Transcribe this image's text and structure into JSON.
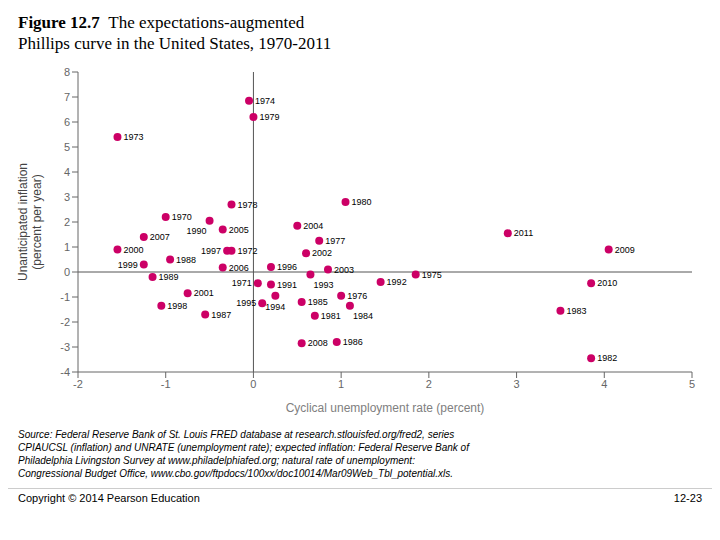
{
  "chart_data": {
    "type": "scatter",
    "title": "Figure 12.7",
    "subtitle": "The expectations-augmented\nPhillips curve in the United States, 1970-2011",
    "xlabel": "Cyclical unemployment rate (percent)",
    "ylabel": "Unanticipated inflation\n(percent per year)",
    "xlim": [
      -2,
      5
    ],
    "ylim": [
      -4,
      8
    ],
    "xticks": [
      -2,
      -1,
      0,
      1,
      2,
      3,
      4,
      5
    ],
    "yticks": [
      -4,
      -3,
      -2,
      -1,
      0,
      1,
      2,
      3,
      4,
      5,
      6,
      7,
      8
    ],
    "grid": false,
    "color": "#cc0066",
    "hlines": [
      0
    ],
    "vlines": [
      0
    ],
    "labels": [
      "1970",
      "1971",
      "1972",
      "1973",
      "1974",
      "1975",
      "1976",
      "1977",
      "1978",
      "1979",
      "1980",
      "1981",
      "1982",
      "1983",
      "1984",
      "1985",
      "1986",
      "1987",
      "1988",
      "1989",
      "1990",
      "1991",
      "1992",
      "1993",
      "1994",
      "1995",
      "1996",
      "1997",
      "1998",
      "1999",
      "2000",
      "2001",
      "2002",
      "2003",
      "2004",
      "2005",
      "2006",
      "2007",
      "2008",
      "2009",
      "2010",
      "2011"
    ],
    "x": [
      -1.0,
      0.05,
      -0.25,
      -1.55,
      -0.05,
      1.85,
      1.0,
      0.75,
      -0.25,
      0.0,
      1.05,
      0.7,
      3.85,
      3.5,
      1.1,
      0.55,
      0.95,
      -0.55,
      -0.95,
      -1.15,
      -0.5,
      0.2,
      1.45,
      0.65,
      0.25,
      0.1,
      0.2,
      -0.3,
      -1.05,
      -1.25,
      -1.55,
      -0.75,
      0.6,
      0.85,
      0.5,
      -0.35,
      -0.35,
      -1.25,
      0.55,
      4.05,
      3.85,
      2.9
    ],
    "values": [
      2.2,
      -0.45,
      0.85,
      5.4,
      6.85,
      -0.1,
      -0.95,
      1.25,
      2.7,
      6.2,
      2.8,
      -1.75,
      -3.45,
      -1.55,
      -1.35,
      -1.2,
      -2.8,
      -1.7,
      0.5,
      -0.2,
      2.05,
      -0.5,
      -0.4,
      -0.1,
      -0.95,
      -1.25,
      0.2,
      0.85,
      -1.35,
      0.3,
      0.9,
      -0.85,
      0.75,
      0.1,
      1.85,
      1.7,
      0.18,
      1.4,
      -2.85,
      0.9,
      -0.45,
      1.55
    ],
    "notes": [
      "Source: Federal Reserve Bank of St. Louis FRED database at research.stlouisfed.org/fred2, series",
      "CPIAUCSL (inflation) and UNRATE (unemployment rate); expected inflation: Federal Reserve Bank of",
      "Philadelphia Livingston Survey at www.philadelphiafed.org; natural rate of unemployment:",
      "Congressional Budget Office, www.cbo.gov/ftpdocs/100xx/doc10014/Mar09Web_Tbl_potential.xls."
    ],
    "footer": "Copyright © 2014 Pearson Education",
    "page_number": "12-23"
  }
}
